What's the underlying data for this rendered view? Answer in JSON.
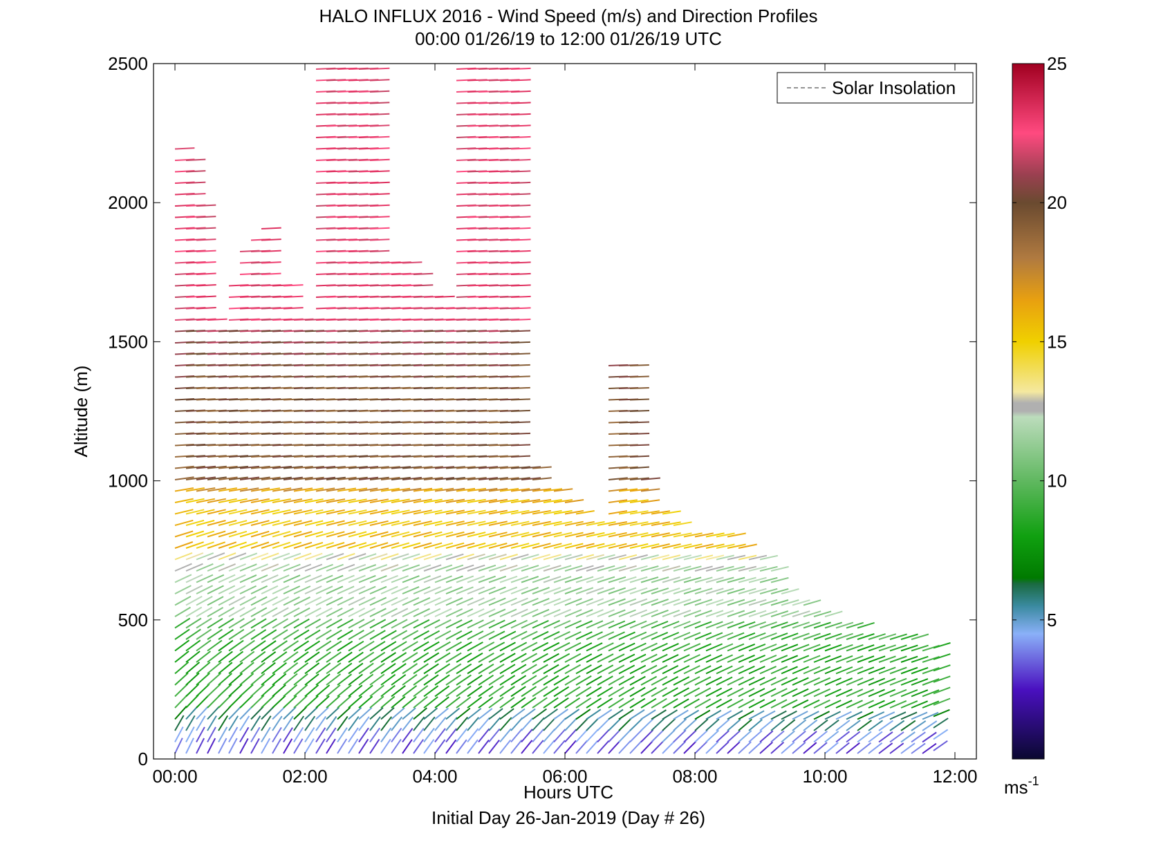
{
  "chart_data": {
    "type": "wind_barb_profile",
    "title": "HALO INFLUX 2016 - Wind Speed (m/s) and Direction Profiles",
    "subtitle": "00:00 01/26/19 to 12:00 01/26/19  UTC",
    "xlabel": "Hours UTC",
    "xlabel2": "Initial Day 26-Jan-2019 (Day # 26)",
    "ylabel": "Altitude (m)",
    "xlim": [
      -0.33,
      12.33
    ],
    "ylim": [
      0,
      2500
    ],
    "x_ticks": [
      0,
      2,
      4,
      6,
      8,
      10,
      12
    ],
    "x_tick_labels": [
      "00:00",
      "02:00",
      "04:00",
      "06:00",
      "08:00",
      "10:00",
      "12:00"
    ],
    "y_ticks": [
      0,
      500,
      1000,
      1500,
      2000,
      2500
    ],
    "y_tick_labels": [
      "0",
      "500",
      "1000",
      "1500",
      "2000",
      "2500"
    ],
    "legend": {
      "label": "Solar Insolation",
      "position": "top-right",
      "style": "dashed"
    },
    "colorbar": {
      "label": "ms",
      "label_sup": "-1",
      "range": [
        0,
        25
      ],
      "ticks": [
        5,
        10,
        15,
        20,
        25
      ],
      "tick_labels": [
        "5",
        "10",
        "15",
        "20",
        "25"
      ],
      "stops": [
        {
          "v": 0,
          "c": "#0a0830"
        },
        {
          "v": 2.5,
          "c": "#4a10c0"
        },
        {
          "v": 4.5,
          "c": "#8ab0f8"
        },
        {
          "v": 5.5,
          "c": "#3a8aa0"
        },
        {
          "v": 6.3,
          "c": "#1a6a40"
        },
        {
          "v": 6.5,
          "c": "#007a00"
        },
        {
          "v": 8,
          "c": "#10a010"
        },
        {
          "v": 10,
          "c": "#60b860"
        },
        {
          "v": 12.3,
          "c": "#bcdcbc"
        },
        {
          "v": 12.5,
          "c": "#b0b0b0"
        },
        {
          "v": 12.8,
          "c": "#b0b0b0"
        },
        {
          "v": 13.2,
          "c": "#f4e8a0"
        },
        {
          "v": 15,
          "c": "#f0d000"
        },
        {
          "v": 16.5,
          "c": "#e8a010"
        },
        {
          "v": 18,
          "c": "#b07a40"
        },
        {
          "v": 20,
          "c": "#6a4a30"
        },
        {
          "v": 21,
          "c": "#9a4050"
        },
        {
          "v": 22.5,
          "c": "#ff4a80"
        },
        {
          "v": 25,
          "c": "#a00020"
        }
      ]
    },
    "profile_times_h": [
      0.0,
      0.17,
      0.33,
      0.5,
      0.67,
      0.83,
      1.0,
      1.17,
      1.33,
      1.5,
      1.67,
      1.83,
      2.0,
      2.17,
      2.33,
      2.5,
      2.67,
      2.83,
      3.0,
      3.17,
      3.33,
      3.5,
      3.67,
      3.83,
      4.0,
      4.17,
      4.33,
      4.5,
      4.67,
      4.83,
      5.0,
      5.17,
      5.33,
      5.5,
      5.67,
      5.83,
      6.0,
      6.17,
      6.33,
      6.5,
      6.67,
      6.83,
      7.0,
      7.17,
      7.33,
      7.5,
      7.67,
      7.83,
      8.0,
      8.17,
      8.33,
      8.5,
      8.67,
      8.83,
      9.0,
      9.17,
      9.33,
      9.5,
      9.67,
      9.83,
      10.0,
      10.17,
      10.33,
      10.5,
      10.67,
      10.83,
      11.0,
      11.17,
      11.33,
      11.5,
      11.67
    ],
    "profile_top_m": [
      2230,
      2190,
      2000,
      1580,
      1550,
      1730,
      1860,
      1880,
      1910,
      1730,
      1740,
      1580,
      1580,
      2490,
      2490,
      2490,
      2490,
      2490,
      2490,
      1820,
      1820,
      1820,
      1780,
      1700,
      1660,
      1650,
      2480,
      2490,
      2490,
      2490,
      2490,
      2490,
      1070,
      1050,
      1000,
      1000,
      950,
      900,
      880,
      860,
      1450,
      1450,
      1450,
      1030,
      900,
      900,
      860,
      830,
      830,
      830,
      800,
      800,
      760,
      720,
      720,
      680,
      600,
      560,
      560,
      540,
      520,
      500,
      490,
      480,
      470,
      470,
      450,
      440,
      430,
      420,
      410
    ],
    "profile_bottom_m": [
      20,
      20,
      20,
      20,
      20,
      20,
      20,
      20,
      20,
      20,
      20,
      20,
      20,
      20,
      20,
      20,
      20,
      20,
      20,
      20,
      20,
      20,
      20,
      20,
      20,
      20,
      20,
      20,
      20,
      20,
      20,
      20,
      20,
      20,
      20,
      20,
      20,
      20,
      20,
      20,
      20,
      20,
      20,
      20,
      20,
      20,
      20,
      20,
      20,
      20,
      20,
      20,
      20,
      20,
      20,
      20,
      20,
      20,
      20,
      20,
      20,
      20,
      20,
      20,
      20,
      20,
      20,
      20,
      20,
      20,
      30
    ],
    "altitude_spacing_m": 41,
    "speed_bands_ms": [
      {
        "alt": [
          0,
          80
        ],
        "speed": 3.5
      },
      {
        "alt": [
          80,
          180
        ],
        "speed": 5.5
      },
      {
        "alt": [
          180,
          500
        ],
        "speed": 8.5
      },
      {
        "alt": [
          500,
          750
        ],
        "speed": 11.5
      },
      {
        "alt": [
          750,
          1000
        ],
        "speed": 15.5
      },
      {
        "alt": [
          1000,
          1550
        ],
        "speed": 19.5
      },
      {
        "alt": [
          1550,
          2500
        ],
        "speed": 22.5
      }
    ]
  }
}
